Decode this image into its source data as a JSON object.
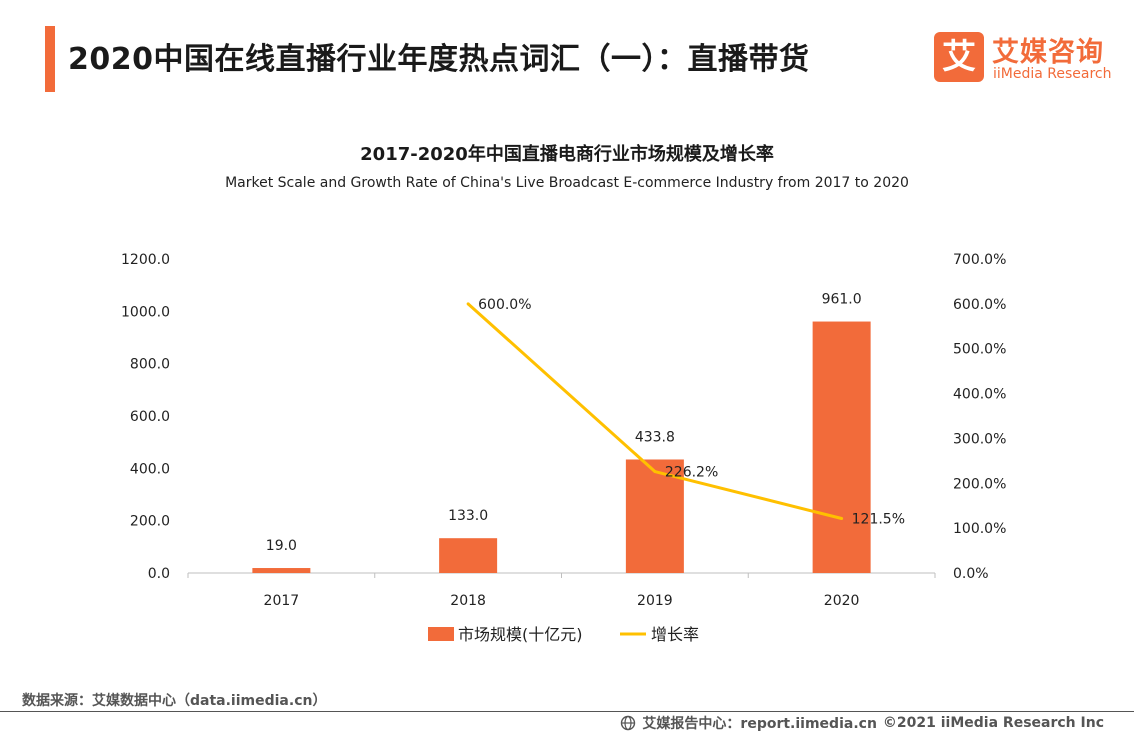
{
  "header": {
    "title": "2020中国在线直播行业年度热点词汇（一）：直播带货"
  },
  "logo": {
    "mark": "艾",
    "name_cn": "艾媒咨询",
    "name_en": "iiMedia Research"
  },
  "chart_data": {
    "type": "bar",
    "title": "2017-2020年中国直播电商行业市场规模及增长率",
    "subtitle": "Market Scale and Growth Rate of China's Live Broadcast E-commerce Industry from 2017 to 2020",
    "categories": [
      "2017",
      "2018",
      "2019",
      "2020"
    ],
    "series": [
      {
        "name": "市场规模(十亿元)",
        "type": "bar",
        "axis": "left",
        "values": [
          19.0,
          133.0,
          433.8,
          961.0
        ],
        "labels": [
          "19.0",
          "133.0",
          "433.8",
          "961.0"
        ],
        "color": "#f26b3a"
      },
      {
        "name": "增长率",
        "type": "line",
        "axis": "right",
        "values": [
          null,
          600.0,
          226.2,
          121.5
        ],
        "labels": [
          "",
          "600.0%",
          "226.2%",
          "121.5%"
        ],
        "color": "#ffc000"
      }
    ],
    "y_left": {
      "range": [
        0,
        1200
      ],
      "ticks": [
        "0.0",
        "200.0",
        "400.0",
        "600.0",
        "800.0",
        "1000.0",
        "1200.0"
      ]
    },
    "y_right": {
      "range": [
        0,
        700
      ],
      "ticks": [
        "0.0%",
        "100.0%",
        "200.0%",
        "300.0%",
        "400.0%",
        "500.0%",
        "600.0%",
        "700.0%"
      ]
    },
    "grid": false,
    "legend": "bottom-center"
  },
  "footer": {
    "source": "数据来源：艾媒数据中心（data.iimedia.cn）",
    "report": "艾媒报告中心：report.iimedia.cn",
    "copyright": "©2021  iiMedia Research  Inc"
  },
  "colors": {
    "accent": "#f26b3a",
    "line": "#ffc000"
  }
}
